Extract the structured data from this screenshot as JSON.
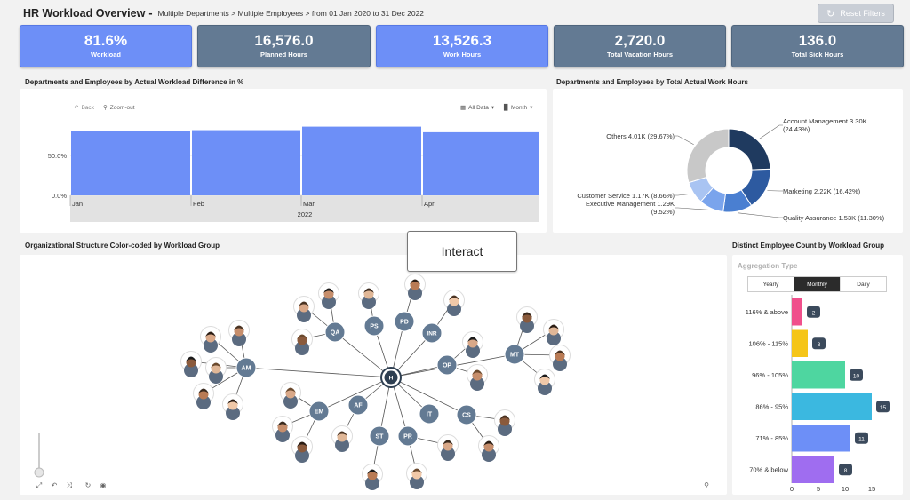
{
  "header": {
    "title": "HR Workload Overview",
    "separator": "-",
    "breadcrumb": "Multiple Departments > Multiple Employees > from 01 Jan 2020 to 31 Dec 2022",
    "reset_label": "Reset Filters"
  },
  "kpis": [
    {
      "value": "81.6%",
      "label": "Workload",
      "color": "#6d8ff7"
    },
    {
      "value": "16,576.0",
      "label": "Planned Hours",
      "color": "#637a93"
    },
    {
      "value": "13,526.3",
      "label": "Work Hours",
      "color": "#6d8ff7"
    },
    {
      "value": "2,720.0",
      "label": "Total Vacation Hours",
      "color": "#637a93"
    },
    {
      "value": "136.0",
      "label": "Total Sick Hours",
      "color": "#637a93"
    }
  ],
  "sections": {
    "workload_diff": "Departments and Employees by Actual Workload Difference in %",
    "work_hours": "Departments and Employees by Total Actual Work Hours",
    "org": "Organizational Structure Color-coded by Workload Group",
    "distinct": "Distinct Employee Count by Workload Group"
  },
  "toolbar": {
    "back": "Back",
    "zoom_out": "Zoom-out",
    "all_data": "All Data",
    "month": "Month"
  },
  "interact_label": "Interact",
  "aggregation": {
    "label": "Aggregation Type",
    "options": [
      "Yearly",
      "Monthly",
      "Daily"
    ],
    "selected": "Monthly"
  },
  "org_chart": {
    "root": "H",
    "groups": [
      "AM",
      "QA",
      "PS",
      "PD",
      "INR",
      "OP",
      "MT",
      "EM",
      "AF",
      "ST",
      "PR",
      "IT",
      "CS"
    ]
  },
  "chart_data": [
    {
      "type": "bar",
      "categories": [
        "Jan",
        "Feb",
        "Mar",
        "Apr"
      ],
      "x_group_label": "2022",
      "values": [
        81,
        81.6,
        86,
        79
      ],
      "yticks": [
        "0.0%",
        "50.0%"
      ],
      "ylim": [
        0,
        100
      ]
    },
    {
      "type": "pie",
      "style": "donut",
      "slices": [
        {
          "label": "Account Management 3.30K (24.43%)",
          "value": 24.43,
          "color": "#1f3a5f"
        },
        {
          "label": "Marketing 2.22K (16.42%)",
          "value": 16.42,
          "color": "#2d5aa0"
        },
        {
          "label": "Quality Assurance 1.53K (11.30%)",
          "value": 11.3,
          "color": "#4a7fd1"
        },
        {
          "label": "Executive Management 1.29K (9.52%)",
          "value": 9.52,
          "color": "#7aa4ec"
        },
        {
          "label": "Customer Service 1.17K (8.66%)",
          "value": 8.66,
          "color": "#a9c4f2"
        },
        {
          "label": "Others 4.01K (29.67%)",
          "value": 29.67,
          "color": "#c8c8c8"
        }
      ]
    },
    {
      "type": "bar",
      "orientation": "horizontal",
      "categories": [
        "116% & above",
        "106% - 115%",
        "96% - 105%",
        "86% - 95%",
        "71% - 85%",
        "70% & below"
      ],
      "values": [
        2,
        3,
        10,
        15,
        11,
        8
      ],
      "colors": [
        "#f0508c",
        "#f5c518",
        "#4ed6a0",
        "#3bb8e0",
        "#6d8ff7",
        "#9f6df0"
      ],
      "xticks": [
        "0",
        "5",
        "10",
        "15"
      ],
      "xlim": [
        0,
        17
      ]
    }
  ]
}
